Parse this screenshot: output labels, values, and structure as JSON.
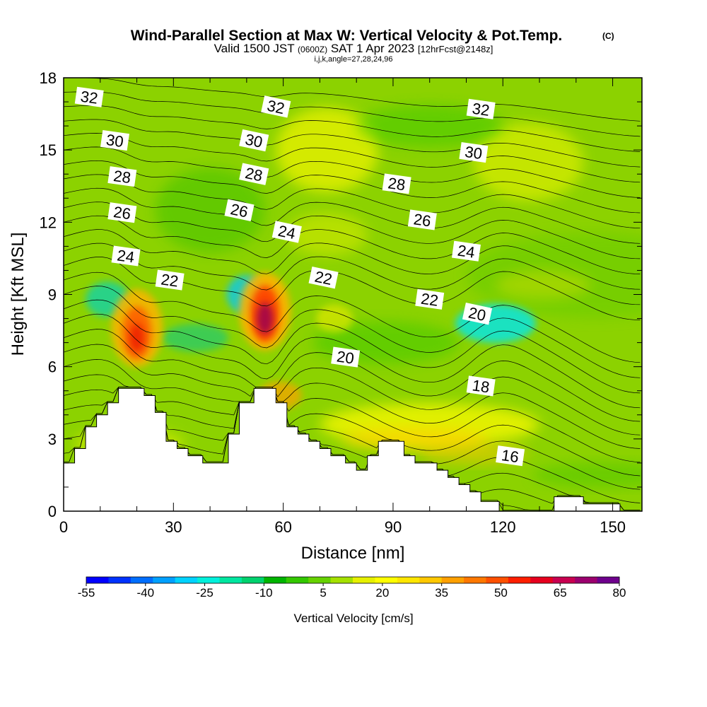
{
  "chart_data": {
    "type": "heatmap",
    "title": "Wind-Parallel Section at Max W: Vertical Velocity & Pot.Temp.",
    "title_unit": "(C)",
    "subtitle": {
      "valid": "Valid 1500 JST",
      "utc": "(0600Z)",
      "date": "SAT 1 Apr 2023",
      "fcst": "[12hrFcst@2148z]"
    },
    "indices": "i,j,k,angle=27,28,24,96",
    "xlabel": "Distance [nm]",
    "ylabel": "Height [Kft MSL]",
    "xlim": [
      0,
      158
    ],
    "ylim": [
      0,
      18
    ],
    "x_ticks": [
      0,
      30,
      60,
      90,
      120,
      150
    ],
    "y_ticks": [
      0,
      3,
      6,
      9,
      12,
      15,
      18
    ],
    "colorbar": {
      "label": "Vertical Velocity [cm/s]",
      "tick_labels": [
        "-55",
        "-40",
        "-25",
        "-10",
        "5",
        "20",
        "35",
        "50",
        "65",
        "80"
      ],
      "range": [
        -55,
        80
      ],
      "colors": [
        "#0000ff",
        "#0032ff",
        "#006eff",
        "#00a0ff",
        "#00d2ff",
        "#00f0dc",
        "#00e6a0",
        "#00d26e",
        "#00b400",
        "#33c800",
        "#66d200",
        "#a5e100",
        "#e6f000",
        "#ffff00",
        "#ffe600",
        "#ffc800",
        "#ffa000",
        "#ff7800",
        "#ff5000",
        "#ff1e00",
        "#e6001e",
        "#c80050",
        "#9b006e",
        "#6e008c"
      ]
    },
    "contour_field": "Potential Temperature (C)",
    "contour_labels": [
      {
        "value": "32",
        "x": 7,
        "y": 17.2
      },
      {
        "value": "32",
        "x": 58,
        "y": 16.8
      },
      {
        "value": "32",
        "x": 114,
        "y": 16.7
      },
      {
        "value": "30",
        "x": 14,
        "y": 15.4
      },
      {
        "value": "30",
        "x": 52,
        "y": 15.4
      },
      {
        "value": "30",
        "x": 112,
        "y": 14.9
      },
      {
        "value": "28",
        "x": 16,
        "y": 13.9
      },
      {
        "value": "28",
        "x": 52,
        "y": 14.0
      },
      {
        "value": "28",
        "x": 91,
        "y": 13.6
      },
      {
        "value": "26",
        "x": 16,
        "y": 12.4
      },
      {
        "value": "26",
        "x": 48,
        "y": 12.5
      },
      {
        "value": "26",
        "x": 98,
        "y": 12.1
      },
      {
        "value": "24",
        "x": 17,
        "y": 10.6
      },
      {
        "value": "24",
        "x": 61,
        "y": 11.6
      },
      {
        "value": "24",
        "x": 110,
        "y": 10.8
      },
      {
        "value": "22",
        "x": 29,
        "y": 9.6
      },
      {
        "value": "22",
        "x": 71,
        "y": 9.7
      },
      {
        "value": "22",
        "x": 100,
        "y": 8.8
      },
      {
        "value": "20",
        "x": 77,
        "y": 6.4
      },
      {
        "value": "20",
        "x": 113,
        "y": 8.2
      },
      {
        "value": "18",
        "x": 114,
        "y": 5.2
      },
      {
        "value": "16",
        "x": 122,
        "y": 2.3
      }
    ],
    "terrain_profile_kft": [
      [
        0,
        2.0
      ],
      [
        3,
        2.0
      ],
      [
        3,
        2.6
      ],
      [
        6,
        2.6
      ],
      [
        6,
        3.5
      ],
      [
        9,
        3.5
      ],
      [
        9,
        4.0
      ],
      [
        12,
        4.0
      ],
      [
        12,
        4.5
      ],
      [
        15,
        4.5
      ],
      [
        15,
        5.1
      ],
      [
        22,
        5.1
      ],
      [
        22,
        4.8
      ],
      [
        25,
        4.8
      ],
      [
        25,
        4.1
      ],
      [
        28,
        4.1
      ],
      [
        28,
        2.9
      ],
      [
        31,
        2.9
      ],
      [
        31,
        2.6
      ],
      [
        34,
        2.6
      ],
      [
        34,
        2.3
      ],
      [
        38,
        2.3
      ],
      [
        38,
        2.0
      ],
      [
        45,
        2.0
      ],
      [
        45,
        3.2
      ],
      [
        48,
        3.2
      ],
      [
        48,
        4.5
      ],
      [
        52,
        4.5
      ],
      [
        52,
        5.1
      ],
      [
        58,
        5.1
      ],
      [
        58,
        4.5
      ],
      [
        61,
        4.5
      ],
      [
        61,
        3.5
      ],
      [
        64,
        3.5
      ],
      [
        64,
        3.2
      ],
      [
        67,
        3.2
      ],
      [
        67,
        2.9
      ],
      [
        70,
        2.9
      ],
      [
        70,
        2.6
      ],
      [
        73,
        2.6
      ],
      [
        73,
        2.3
      ],
      [
        77,
        2.3
      ],
      [
        77,
        2.0
      ],
      [
        80,
        2.0
      ],
      [
        80,
        1.7
      ],
      [
        83,
        1.7
      ],
      [
        83,
        2.3
      ],
      [
        86,
        2.3
      ],
      [
        86,
        2.9
      ],
      [
        93,
        2.9
      ],
      [
        93,
        2.3
      ],
      [
        96,
        2.3
      ],
      [
        96,
        2.0
      ],
      [
        102,
        2.0
      ],
      [
        102,
        1.7
      ],
      [
        105,
        1.7
      ],
      [
        105,
        1.4
      ],
      [
        108,
        1.4
      ],
      [
        108,
        1.1
      ],
      [
        111,
        1.1
      ],
      [
        111,
        0.8
      ],
      [
        114,
        0.8
      ],
      [
        114,
        0.4
      ],
      [
        119,
        0.4
      ],
      [
        119,
        0.0
      ],
      [
        134,
        0.0
      ],
      [
        134,
        0.6
      ],
      [
        142,
        0.6
      ],
      [
        142,
        0.3
      ],
      [
        152,
        0.3
      ],
      [
        152,
        0.0
      ],
      [
        158,
        0.0
      ]
    ],
    "updraft_cores": [
      {
        "x": 20,
        "y": 7.5,
        "w_cm_s": 45
      },
      {
        "x": 55,
        "y": 8.3,
        "w_cm_s": 70
      },
      {
        "x": 60,
        "y": 4.6,
        "w_cm_s": 40
      }
    ],
    "downdraft_cores": [
      {
        "x": 12,
        "y": 8.8,
        "w_cm_s": -25
      },
      {
        "x": 51,
        "y": 9.0,
        "w_cm_s": -30
      },
      {
        "x": 118,
        "y": 7.5,
        "w_cm_s": -35
      }
    ]
  }
}
